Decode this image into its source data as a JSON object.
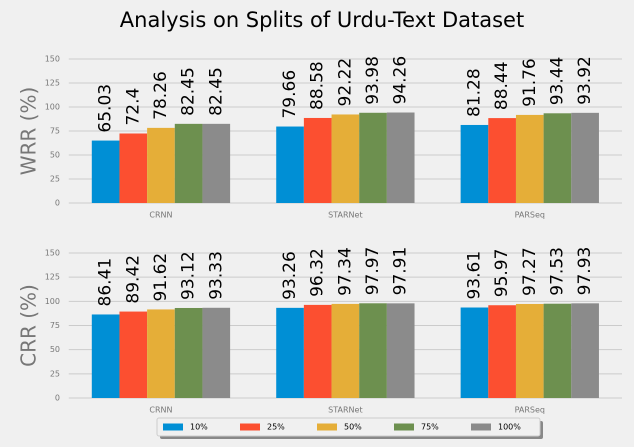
{
  "title": "Analysis on Splits of Urdu-Text Dataset",
  "legend": {
    "position": "lower center",
    "entries": [
      {
        "name": "10%",
        "color": "#008fd5"
      },
      {
        "name": "25%",
        "color": "#fc4f30"
      },
      {
        "name": "50%",
        "color": "#e5ae38"
      },
      {
        "name": "75%",
        "color": "#6d904f"
      },
      {
        "name": "100%",
        "color": "#8b8b8b"
      }
    ]
  },
  "chart_data": [
    {
      "type": "bar",
      "ylabel": "WRR (%)",
      "categories": [
        "CRNN",
        "STARNet",
        "PARSeq"
      ],
      "series": [
        {
          "values": [
            65.03,
            79.66,
            81.28
          ]
        },
        {
          "values": [
            72.4,
            88.58,
            88.44
          ]
        },
        {
          "values": [
            78.26,
            92.22,
            91.76
          ]
        },
        {
          "values": [
            82.45,
            93.98,
            93.44
          ]
        },
        {
          "values": [
            82.45,
            94.26,
            93.92
          ]
        }
      ],
      "ylim": [
        0,
        150
      ],
      "yticks": [
        0,
        25,
        50,
        75,
        100,
        125,
        150
      ],
      "grid": true
    },
    {
      "type": "bar",
      "ylabel": "CRR (%)",
      "categories": [
        "CRNN",
        "STARNet",
        "PARSeq"
      ],
      "series": [
        {
          "values": [
            86.41,
            93.26,
            93.61
          ]
        },
        {
          "values": [
            89.42,
            96.32,
            95.97
          ]
        },
        {
          "values": [
            91.62,
            97.34,
            97.27
          ]
        },
        {
          "values": [
            93.12,
            97.97,
            97.53
          ]
        },
        {
          "values": [
            93.33,
            97.91,
            97.93
          ]
        }
      ],
      "ylim": [
        0,
        150
      ],
      "yticks": [
        0,
        25,
        50,
        75,
        100,
        125,
        150
      ],
      "grid": true
    }
  ]
}
